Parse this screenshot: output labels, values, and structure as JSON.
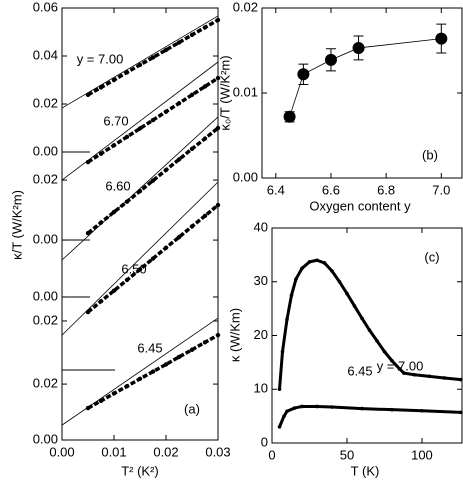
{
  "chart_data": [
    {
      "type": "scatter",
      "panel_label": "(a)",
      "xlabel": "T² (K²)",
      "ylabel": "κ/T (W/K²m)",
      "xlim": [
        0,
        0.03
      ],
      "ylim": [
        -0.12,
        0.06
      ],
      "xticks": [
        {
          "value": 0,
          "label": "0.00"
        },
        0.01,
        0.02,
        0.03
      ],
      "yticks": [
        0.06,
        0.04,
        0.02,
        {
          "value": 0,
          "label": "0.00"
        },
        {
          "value": -0.0117,
          "label": "0.02"
        },
        {
          "value": -0.0367,
          "label": "0.00"
        },
        {
          "value": -0.0604,
          "label": "0.00"
        },
        {
          "value": -0.0704,
          "label": "0.02"
        },
        {
          "value": -0.0967,
          "label": "0.02"
        },
        {
          "value": -0.12,
          "label": "0.00"
        }
      ],
      "x": [
        0.005,
        0.0075,
        0.01,
        0.0125,
        0.015,
        0.0175,
        0.02,
        0.0225,
        0.025,
        0.0275,
        0.03
      ],
      "fit_x": [
        0,
        0.03
      ],
      "series": [
        {
          "name": "y = 7.00",
          "color": "#000000",
          "values": [
            0.0238,
            0.0269,
            0.03,
            0.0332,
            0.0363,
            0.0394,
            0.0425,
            0.0456,
            0.0488,
            0.0519,
            0.055
          ],
          "fit": [
            0.0183,
            0.0567
          ]
        },
        {
          "name": "6.70",
          "color": "#000000",
          "values": [
            -0.0042,
            -0.0007,
            0.0028,
            0.0063,
            0.0098,
            0.0133,
            0.0168,
            0.0203,
            0.0238,
            0.0273,
            0.0308
          ],
          "fit": [
            -0.0117,
            0.0375
          ]
        },
        {
          "name": "6.60",
          "color": "#000000",
          "values": [
            -0.0338,
            -0.0294,
            -0.025,
            -0.0207,
            -0.0163,
            -0.0119,
            -0.0075,
            -0.0031,
            0.0013,
            0.0056,
            0.01
          ],
          "fit": [
            -0.045,
            0.0146
          ]
        },
        {
          "name": "6.50",
          "color": "#000000",
          "values": [
            -0.0667,
            -0.0622,
            -0.0578,
            -0.0533,
            -0.0489,
            -0.0444,
            -0.0399,
            -0.0355,
            -0.031,
            -0.0266,
            -0.0221
          ],
          "fit": [
            -0.0763,
            -0.0125
          ]
        },
        {
          "name": "6.45",
          "color": "#000000",
          "values": [
            -0.1067,
            -0.1037,
            -0.1006,
            -0.0976,
            -0.0945,
            -0.0915,
            -0.0885,
            -0.0854,
            -0.0824,
            -0.0793,
            -0.0763
          ],
          "fit": [
            -0.1138,
            -0.0692
          ]
        }
      ]
    },
    {
      "type": "errorbar",
      "panel_label": "(b)",
      "xlabel": "Oxygen content y",
      "ylabel": "κ₀/T (W/K²m)",
      "xlim": [
        6.35,
        7.075
      ],
      "ylim": [
        0,
        0.02
      ],
      "xticks": [
        6.4,
        6.6,
        6.8,
        {
          "value": 7,
          "label": "7.0"
        }
      ],
      "yticks": [
        {
          "value": 0,
          "label": "0.00"
        },
        0.01,
        0.02
      ],
      "x": [
        6.45,
        6.5,
        6.6,
        6.7,
        7.0
      ],
      "series": [
        {
          "color": "#000000",
          "values": [
            0.0072,
            0.0122,
            0.0139,
            0.0153,
            0.0164
          ],
          "errors": [
            0.0006,
            0.0012,
            0.0013,
            0.0014,
            0.0017
          ]
        }
      ]
    },
    {
      "type": "line",
      "panel_label": "(c)",
      "xlabel": "T (K)",
      "ylabel": "κ (W/Km)",
      "xlim": [
        0,
        126.7
      ],
      "ylim": [
        0,
        40
      ],
      "xticks": [
        0,
        50,
        100
      ],
      "yticks": [
        0,
        10,
        20,
        30,
        40
      ],
      "series": [
        {
          "name": "y = 7.00",
          "color": "#000000",
          "x": [
            5,
            7,
            10,
            13,
            16,
            20,
            25,
            30,
            35,
            40,
            45,
            50,
            55,
            60,
            65,
            70,
            75,
            80,
            85,
            88,
            95,
            105,
            115,
            126
          ],
          "values": [
            10,
            17,
            23,
            27.5,
            30.5,
            32.5,
            33.7,
            34,
            33.5,
            32,
            30,
            27.8,
            25.5,
            23.2,
            21,
            19,
            17,
            15.3,
            13.8,
            13,
            12.7,
            12.4,
            12.1,
            11.8
          ]
        },
        {
          "name": "6.45",
          "color": "#000000",
          "x": [
            5,
            8,
            10,
            15,
            20,
            30,
            40,
            60,
            80,
            100,
            126
          ],
          "values": [
            3,
            5,
            5.9,
            6.5,
            6.8,
            6.8,
            6.7,
            6.4,
            6.2,
            6,
            5.7
          ]
        }
      ]
    }
  ]
}
